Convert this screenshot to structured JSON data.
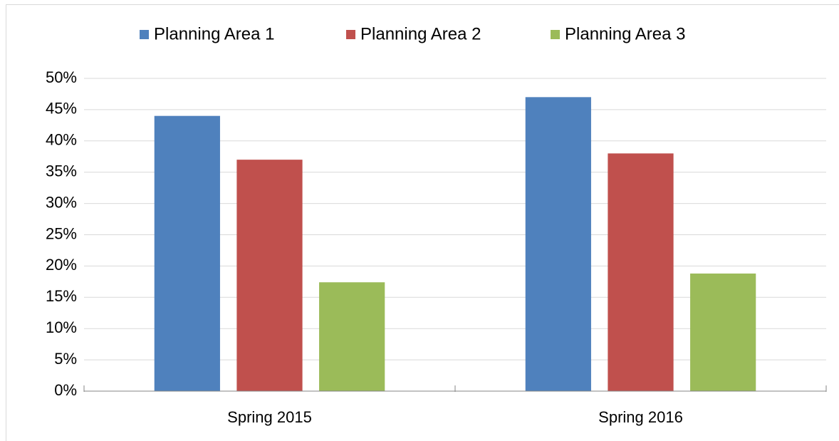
{
  "chart_data": {
    "type": "bar",
    "categories": [
      "Spring 2015",
      "Spring 2016"
    ],
    "series": [
      {
        "name": "Planning Area 1",
        "color": "#4f81bd",
        "values": [
          44,
          47
        ]
      },
      {
        "name": "Planning Area 2",
        "color": "#c0504d",
        "values": [
          37,
          38
        ]
      },
      {
        "name": "Planning Area 3",
        "color": "#9bbb59",
        "values": [
          17.4,
          18.8
        ]
      }
    ],
    "ylim": [
      0,
      50
    ],
    "yticks": [
      {
        "value": 0,
        "label": "0%"
      },
      {
        "value": 5,
        "label": "5%"
      },
      {
        "value": 10,
        "label": "10%"
      },
      {
        "value": 15,
        "label": "15%"
      },
      {
        "value": 20,
        "label": "20%"
      },
      {
        "value": 25,
        "label": "25%"
      },
      {
        "value": 30,
        "label": "30%"
      },
      {
        "value": 35,
        "label": "35%"
      },
      {
        "value": 40,
        "label": "40%"
      },
      {
        "value": 45,
        "label": "45%"
      },
      {
        "value": 50,
        "label": "50%"
      }
    ],
    "grid": true,
    "legend": "top"
  }
}
